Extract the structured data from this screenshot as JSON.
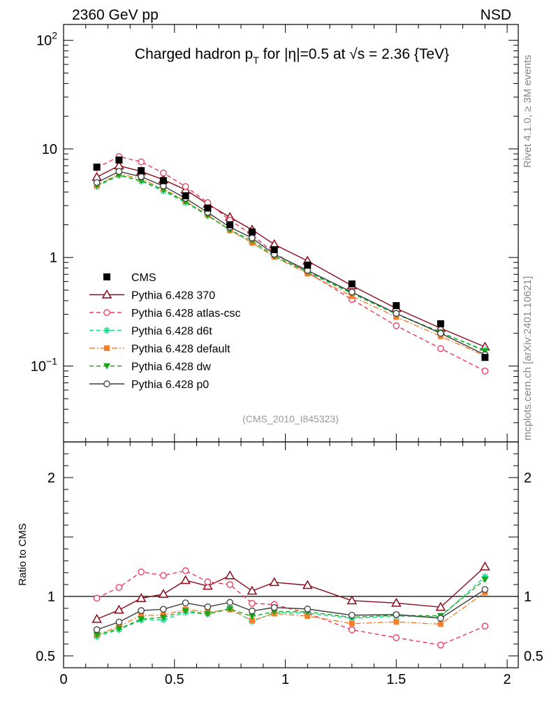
{
  "header": {
    "left": "2360 GeV pp",
    "right": "NSD"
  },
  "side_labels": {
    "rivet": "Rivet 4.1.0, ≥ 3M events",
    "mcplots": "mcplots.cern.ch [arXiv:2401.10621]"
  },
  "chart_data": {
    "type": "line",
    "title_parts": {
      "a": "Charged hadron p",
      "sub": "T",
      "b": " for |η|=0.5 at √s = 2.36 {TeV}"
    },
    "analysis_id": "(CMS_2010_I845323)",
    "x": [
      0.15,
      0.25,
      0.35,
      0.45,
      0.55,
      0.65,
      0.75,
      0.85,
      0.95,
      1.1,
      1.3,
      1.5,
      1.7,
      1.9
    ],
    "xlim": [
      0,
      2.05
    ],
    "x_ticks": [
      "0",
      "0.5",
      "1",
      "1.5",
      "2"
    ],
    "x_tick_values": [
      0,
      0.5,
      1,
      1.5,
      2
    ],
    "main": {
      "ylim": [
        0.02,
        140
      ],
      "y_scale": "log",
      "y_ticks": [
        {
          "value": 100,
          "label": "10",
          "sup": "2"
        },
        {
          "value": 10,
          "label": "10",
          "sup": ""
        },
        {
          "value": 1,
          "label": "1",
          "sup": ""
        },
        {
          "value": 0.1,
          "label": "10",
          "sup": "−1"
        }
      ]
    },
    "ratio": {
      "ylabel": "Ratio to CMS",
      "ylim": [
        0.4,
        2.3
      ],
      "y_ticks": [
        {
          "value": 2,
          "label": "2"
        },
        {
          "value": 1,
          "label": "1"
        },
        {
          "value": 0.5,
          "label": "0.5"
        }
      ]
    },
    "data": {
      "name": "CMS",
      "values": [
        6.8,
        7.9,
        6.3,
        5.1,
        3.7,
        2.85,
        2.0,
        1.72,
        1.18,
        0.85,
        0.57,
        0.36,
        0.245,
        0.12
      ]
    },
    "series": [
      {
        "name": "Pythia 6.428 370",
        "color": "#8b0a1a",
        "dash": "",
        "marker": "triangle-open",
        "values": [
          5.5,
          7.0,
          6.2,
          5.2,
          4.2,
          3.1,
          2.35,
          1.8,
          1.32,
          0.93,
          0.55,
          0.34,
          0.223,
          0.15
        ]
      },
      {
        "name": "Pythia 6.428 atlas-csc",
        "color": "#f0365a",
        "dash": "6,4",
        "marker": "circle-open",
        "values": [
          6.7,
          8.5,
          7.6,
          6.0,
          4.5,
          3.2,
          2.2,
          1.62,
          1.1,
          0.73,
          0.41,
          0.235,
          0.145,
          0.09
        ]
      },
      {
        "name": "Pythia 6.428 d6t",
        "color": "#1ad58e",
        "dash": "6,4",
        "marker": "star",
        "values": [
          4.5,
          5.7,
          5.05,
          4.1,
          3.2,
          2.43,
          1.8,
          1.36,
          1.02,
          0.73,
          0.465,
          0.3,
          0.203,
          0.14
        ]
      },
      {
        "name": "Pythia 6.428 default",
        "color": "#f67e2c",
        "dash": "8,3,2,3",
        "marker": "square",
        "values": [
          4.6,
          5.9,
          5.3,
          4.3,
          3.3,
          2.47,
          1.78,
          1.37,
          1.01,
          0.71,
          0.44,
          0.283,
          0.188,
          0.124
        ]
      },
      {
        "name": "Pythia 6.428 dw",
        "color": "#1aa71a",
        "dash": "6,4",
        "marker": "triangle-down",
        "values": [
          4.6,
          5.75,
          5.1,
          4.2,
          3.25,
          2.43,
          1.79,
          1.43,
          1.03,
          0.74,
          0.47,
          0.303,
          0.205,
          0.137
        ]
      },
      {
        "name": "Pythia 6.428 p0",
        "color": "#3c3c3c",
        "dash": "",
        "marker": "circle-open",
        "values": [
          4.9,
          6.2,
          5.55,
          4.55,
          3.5,
          2.6,
          1.9,
          1.51,
          1.07,
          0.76,
          0.48,
          0.305,
          0.2,
          0.127
        ]
      }
    ]
  }
}
